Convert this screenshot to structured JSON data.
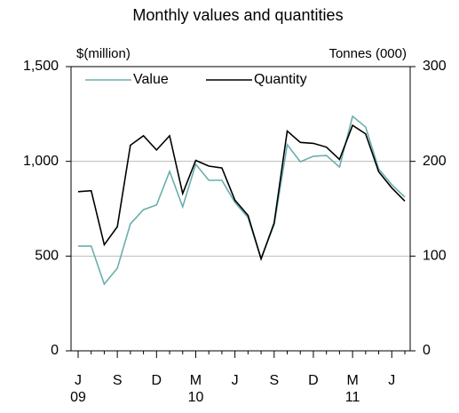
{
  "chart_data": {
    "type": "line",
    "subtitle": "Monthly values and quantities",
    "ylabel": "$(million)",
    "y2label": "Tonnes (000)",
    "categories": [
      "J\n09",
      null,
      null,
      "S",
      null,
      null,
      "D",
      null,
      null,
      "M\n10",
      null,
      null,
      "J",
      null,
      null,
      "S",
      null,
      null,
      "D",
      null,
      null,
      "M\n11",
      null,
      null,
      "J",
      null
    ],
    "series": [
      {
        "name": "Value",
        "color": "#6aaeae",
        "values": [
          553,
          553,
          352,
          436,
          670,
          745,
          770,
          947,
          760,
          985,
          900,
          900,
          783,
          703,
          488,
          666,
          1088,
          998,
          1027,
          1031,
          970,
          1238,
          1181,
          960,
          877,
          811
        ]
      },
      {
        "name": "Quantity",
        "color": "#000000",
        "axis": "y2",
        "values": [
          168,
          169,
          112,
          131,
          217,
          227,
          212,
          227,
          166,
          201,
          195,
          193,
          159,
          143,
          97,
          135,
          232,
          220,
          219,
          215,
          202,
          238,
          229,
          189,
          172,
          158
        ]
      }
    ],
    "ylim": [
      0,
      1500
    ],
    "yticks": [
      0,
      500,
      {
        "value": 1000,
        "label": "1,000"
      },
      {
        "value": 1500,
        "label": "1,500"
      }
    ],
    "y2lim": [
      0,
      300
    ],
    "y2ticks": [
      0,
      100,
      200,
      300
    ],
    "grid": true
  }
}
